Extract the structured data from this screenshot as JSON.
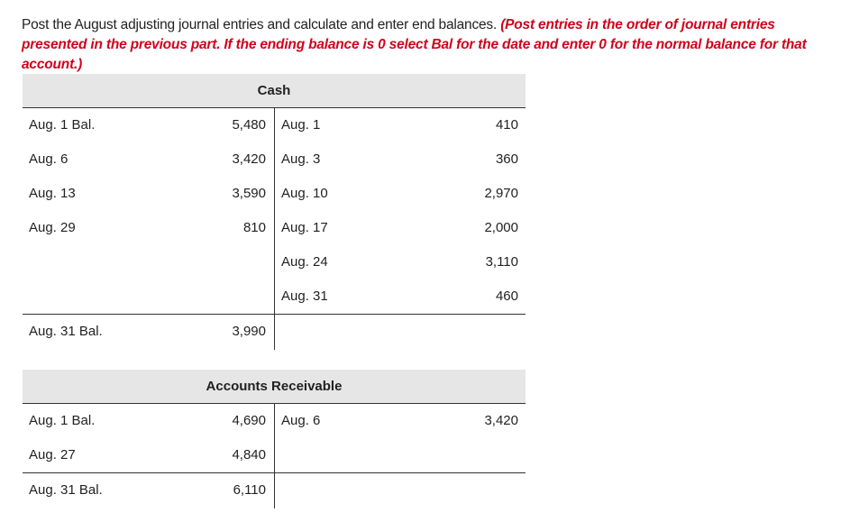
{
  "instructions": {
    "main": "Post the August adjusting journal entries and calculate and enter end balances. ",
    "note": "(Post entries in the order of journal entries presented in the previous part. If the ending balance is 0 select Bal for the date and enter 0 for the normal balance for that account.)"
  },
  "cash": {
    "title": "Cash",
    "rows": [
      {
        "ldate": "Aug. 1 Bal.",
        "lamt": "5,480",
        "rdate": "Aug. 1",
        "ramt": "410"
      },
      {
        "ldate": "Aug. 6",
        "lamt": "3,420",
        "rdate": "Aug. 3",
        "ramt": "360"
      },
      {
        "ldate": "Aug. 13",
        "lamt": "3,590",
        "rdate": "Aug. 10",
        "ramt": "2,970"
      },
      {
        "ldate": "Aug. 29",
        "lamt": "810",
        "rdate": "Aug. 17",
        "ramt": "2,000"
      },
      {
        "ldate": "",
        "lamt": "",
        "rdate": "Aug. 24",
        "ramt": "3,110"
      },
      {
        "ldate": "",
        "lamt": "",
        "rdate": "Aug. 31",
        "ramt": "460"
      }
    ],
    "balance": {
      "ldate": "Aug. 31 Bal.",
      "lamt": "3,990"
    }
  },
  "ar": {
    "title": "Accounts Receivable",
    "rows": [
      {
        "ldate": "Aug. 1 Bal.",
        "lamt": "4,690",
        "rdate": "Aug. 6",
        "ramt": "3,420"
      },
      {
        "ldate": "Aug. 27",
        "lamt": "4,840",
        "rdate": "",
        "ramt": ""
      }
    ],
    "balance": {
      "ldate": "Aug. 31 Bal.",
      "lamt": "6,110"
    }
  }
}
